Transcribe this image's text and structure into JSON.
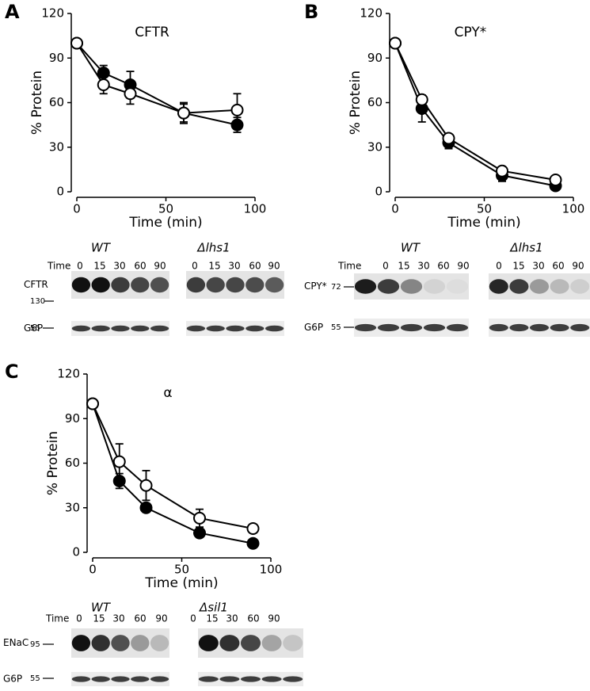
{
  "chart_data": [
    {
      "panel": "A",
      "type": "line",
      "title": "CFTR",
      "xlabel": "Time (min)",
      "ylabel": "% Protein",
      "x": [
        0,
        15,
        30,
        60,
        90
      ],
      "xlim": [
        0,
        100
      ],
      "xticks": [
        0,
        50,
        100
      ],
      "ylim": [
        0,
        120
      ],
      "yticks": [
        0,
        30,
        60,
        90,
        120
      ],
      "series": [
        {
          "color": "#000000",
          "values": [
            100,
            80,
            72,
            53,
            45
          ],
          "errors": [
            0,
            5,
            9,
            6,
            5
          ]
        },
        {
          "color": "#ffffff",
          "values": [
            100,
            72,
            66,
            53,
            55
          ],
          "errors": [
            0,
            6,
            7,
            7,
            11
          ]
        }
      ],
      "blot": {
        "groups": [
          "WT",
          "Δlhs1"
        ],
        "time_label": "Time",
        "lanes": [
          0,
          15,
          30,
          60,
          90
        ],
        "rows": [
          {
            "label": "CFTR",
            "marker": 130
          },
          {
            "label": "G6P",
            "marker": 55
          }
        ]
      }
    },
    {
      "panel": "B",
      "type": "line",
      "title": "CPY*",
      "xlabel": "Time (min)",
      "ylabel": "% Protein",
      "x": [
        0,
        15,
        30,
        60,
        90
      ],
      "xlim": [
        0,
        100
      ],
      "xticks": [
        0,
        50,
        100
      ],
      "ylim": [
        0,
        120
      ],
      "yticks": [
        0,
        30,
        60,
        90,
        120
      ],
      "series": [
        {
          "color": "#000000",
          "values": [
            100,
            56,
            33,
            11,
            4
          ],
          "errors": [
            0,
            9,
            4,
            4,
            2
          ]
        },
        {
          "color": "#ffffff",
          "values": [
            100,
            62,
            36,
            14,
            8
          ],
          "errors": [
            0,
            3,
            2,
            2,
            2
          ]
        }
      ],
      "blot": {
        "groups": [
          "WT",
          "Δlhs1"
        ],
        "time_label": "Time",
        "lanes": [
          0,
          15,
          30,
          60,
          90
        ],
        "rows": [
          {
            "label": "CPY*",
            "marker": 72
          },
          {
            "label": "G6P",
            "marker": 55
          }
        ]
      }
    },
    {
      "panel": "C",
      "type": "line",
      "title": "α",
      "xlabel": "Time (min)",
      "ylabel": "% Protein",
      "x": [
        0,
        15,
        30,
        60,
        90
      ],
      "xlim": [
        0,
        100
      ],
      "xticks": [
        0,
        50,
        100
      ],
      "ylim": [
        0,
        120
      ],
      "yticks": [
        0,
        30,
        60,
        90,
        120
      ],
      "series": [
        {
          "color": "#000000",
          "values": [
            100,
            48,
            30,
            13,
            6
          ],
          "errors": [
            0,
            5,
            3,
            2,
            1
          ]
        },
        {
          "color": "#ffffff",
          "values": [
            100,
            61,
            45,
            23,
            16
          ],
          "errors": [
            0,
            12,
            10,
            6,
            3
          ]
        }
      ],
      "blot": {
        "groups": [
          "WT",
          "Δsil1"
        ],
        "time_label": "Time",
        "lanes": [
          0,
          15,
          30,
          60,
          90
        ],
        "rows": [
          {
            "label": "ENaC",
            "marker": 95
          },
          {
            "label": "G6P",
            "marker": 55
          }
        ]
      }
    }
  ]
}
